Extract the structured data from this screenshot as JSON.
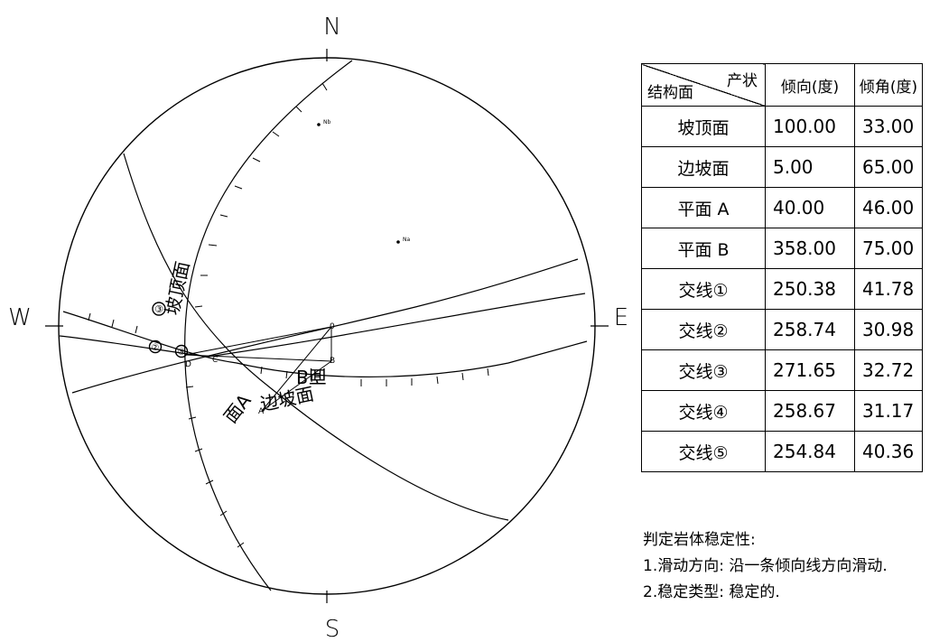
{
  "compass": {
    "north": "N",
    "south": "S",
    "east": "E",
    "west": "W"
  },
  "curve_labels": {
    "crest": "坡顶面",
    "slope": "边坡面",
    "plane_a": "面A",
    "plane_b": "B面"
  },
  "pole_labels": {
    "nb": "Nb",
    "na": "Na"
  },
  "small_labels": {
    "o": "0",
    "b": "B",
    "c": "C",
    "a": "A",
    "d": "D"
  },
  "intersection_markers": [
    "②",
    "⑤",
    "③"
  ],
  "table": {
    "header_top": "产状",
    "header_bottom": "结构面",
    "col_dip_direction": "倾向(度)",
    "col_dip_angle": "倾角(度)",
    "rows": [
      {
        "name": "坡顶面",
        "dip_direction": "100.00",
        "dip_angle": "33.00"
      },
      {
        "name": "边坡面",
        "dip_direction": "5.00",
        "dip_angle": "65.00"
      },
      {
        "name": "平面 A",
        "dip_direction": "40.00",
        "dip_angle": "46.00"
      },
      {
        "name": "平面 B",
        "dip_direction": "358.00",
        "dip_angle": "75.00"
      },
      {
        "name": "交线①",
        "dip_direction": "250.38",
        "dip_angle": "41.78"
      },
      {
        "name": "交线②",
        "dip_direction": "258.74",
        "dip_angle": "30.98"
      },
      {
        "name": "交线③",
        "dip_direction": "271.65",
        "dip_angle": "32.72"
      },
      {
        "name": "交线④",
        "dip_direction": "258.67",
        "dip_angle": "31.17"
      },
      {
        "name": "交线⑤",
        "dip_direction": "254.84",
        "dip_angle": "40.36"
      }
    ]
  },
  "notes": {
    "title": "判定岩体稳定性:",
    "line1": "1.滑动方向:  沿一条倾向线方向滑动.",
    "line2": "2.稳定类型:  稳定的."
  }
}
